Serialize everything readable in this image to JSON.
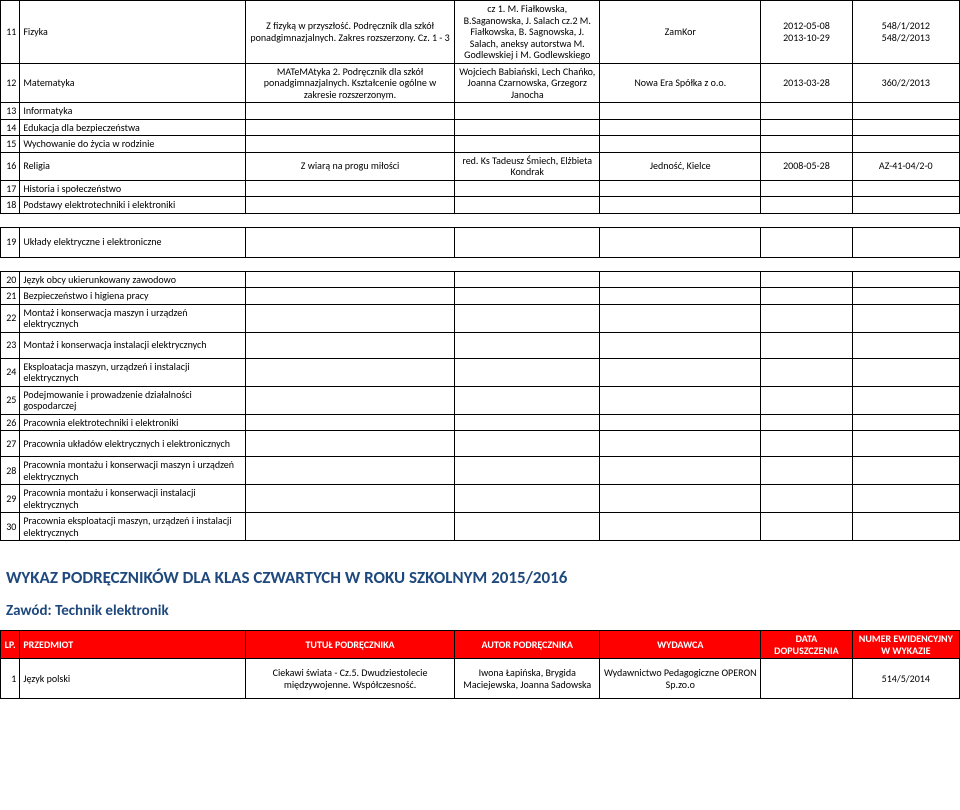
{
  "top_rows": [
    {
      "num": "11",
      "subj": "Fizyka",
      "title": "Z fizyką w przyszłość. Podręcznik dla szkół ponadgimnazjalnych. Zakres rozszerzony. Cz. 1 - 3",
      "author": "cz 1. M. Fiałkowska, B.Saganowska, J. Salach cz.2 M. Fiałkowska, B. Sagnowska, J. Salach, aneksy autorstwa M. Godlewskiej i M. Godlewskiego",
      "pub": "ZamKor",
      "date": "2012-05-08\n2013-10-29",
      "id": "548/1/2012\n548/2/2013"
    },
    {
      "num": "12",
      "subj": "Matematyka",
      "title": "MATeMAtyka 2. Podręcznik dla szkół ponadgimnazjalnych. Kształcenie ogólne w zakresie rozszerzonym.",
      "author": "Wojciech Babiański, Lech Chańko, Joanna Czarnowska, Grzegorz Janocha",
      "pub": "Nowa Era Spółka z o.o.",
      "date": "2013-03-28",
      "id": "360/2/2013"
    },
    {
      "num": "13",
      "subj": "Informatyka",
      "title": "",
      "author": "",
      "pub": "",
      "date": "",
      "id": ""
    },
    {
      "num": "14",
      "subj": "Edukacja dla bezpieczeństwa",
      "title": "",
      "author": "",
      "pub": "",
      "date": "",
      "id": ""
    },
    {
      "num": "15",
      "subj": "Wychowanie do życia w rodzinie",
      "title": "",
      "author": "",
      "pub": "",
      "date": "",
      "id": ""
    },
    {
      "num": "16",
      "subj": "Religia",
      "title": "Z wiarą na progu miłości",
      "author": "red. Ks Tadeusz Śmiech, Elżbieta Kondrak",
      "pub": "Jedność, Kielce",
      "date": "2008-05-28",
      "id": "AZ-41-04/2-0"
    },
    {
      "num": "17",
      "subj": "Historia i społeczeństwo",
      "title": "",
      "author": "",
      "pub": "",
      "date": "",
      "id": ""
    },
    {
      "num": "18",
      "subj": "Podstawy elektrotechniki i elektroniki",
      "title": "",
      "author": "",
      "pub": "",
      "date": "",
      "id": ""
    }
  ],
  "row_19": {
    "num": "19",
    "subj": "Układy elektryczne i elektroniczne"
  },
  "bottom_rows": [
    {
      "num": "20",
      "subj": "Język obcy ukierunkowany zawodowo"
    },
    {
      "num": "21",
      "subj": "Bezpieczeństwo i higiena pracy"
    },
    {
      "num": "22",
      "subj": "Montaż i konserwacja maszyn i urządzeń elektrycznych"
    },
    {
      "num": "23",
      "subj": "Montaż i konserwacja instalacji elektrycznych"
    },
    {
      "num": "24",
      "subj": "Eksploatacja maszyn, urządzeń i instalacji elektrycznych"
    },
    {
      "num": "25",
      "subj": "Podejmowanie i prowadzenie działalności gospodarczej"
    },
    {
      "num": "26",
      "subj": "Pracownia elektrotechniki i elektroniki"
    },
    {
      "num": "27",
      "subj": "Pracownia układów elektrycznych i elektronicznych"
    },
    {
      "num": "28",
      "subj": "Pracownia montażu i konserwacji maszyn i urządzeń elektrycznych"
    },
    {
      "num": "29",
      "subj": "Pracownia montażu i konserwacji instalacji elektrycznych"
    },
    {
      "num": "30",
      "subj": "Pracownia eksploatacji maszyn, urządzeń i instalacji elektrycznych"
    }
  ],
  "section_title": "WYKAZ PODRĘCZNIKÓW DLA KLAS CZWARTYCH W ROKU SZKOLNYM 2015/2016",
  "zawod": "Zawód: Technik elektronik",
  "header": {
    "lp": "LP.",
    "przedmiot": "PRZEDMIOT",
    "tytul": "TUTUŁ PODRĘCZNIKA",
    "autor": "AUTOR PODRĘCZNIKA",
    "wydawca": "WYDAWCA",
    "data": "DATA DOPUSZCZENIA",
    "numer": "NUMER EWIDENCYJNY W WYKAZIE"
  },
  "new_rows": [
    {
      "num": "1",
      "subj": "Język polski",
      "title": "Ciekawi świata  -  Cz.5. Dwudziestolecie międzywojenne. Współczesność.",
      "author": "Iwona Łapińska, Brygida Maciejewska, Joanna Sadowska",
      "pub": "Wydawnictwo Pedagogiczne OPERON Sp.zo.o",
      "date": "",
      "id": "514/5/2014"
    }
  ]
}
